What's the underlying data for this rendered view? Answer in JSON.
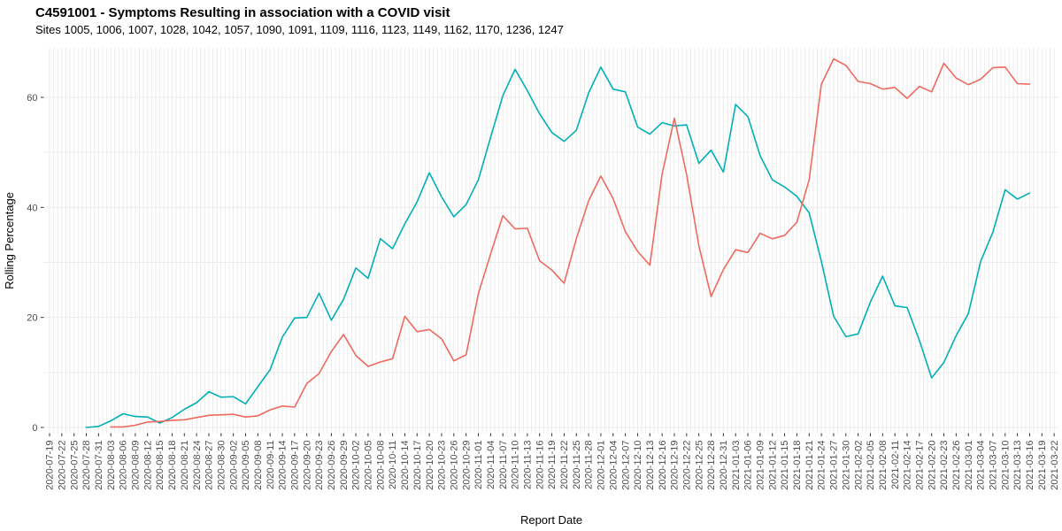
{
  "header": {
    "title": "C4591001 - Symptoms Resulting in association with a COVID visit",
    "subtitle": "Sites 1005, 1006, 1007, 1028, 1042, 1057, 1090, 1091, 1109, 1116, 1123, 1149, 1162, 1170, 1236, 1247"
  },
  "chart_data": {
    "type": "line",
    "title": "C4591001 - Symptoms Resulting in association with a COVID visit",
    "subtitle": "Sites 1005, 1006, 1007, 1028, 1042, 1057, 1090, 1091, 1109, 1116, 1123, 1149, 1162, 1170, 1236, 1247",
    "xlabel": "Report Date",
    "ylabel": "Rolling Percentage",
    "ylim": [
      0,
      68.8
    ],
    "yticks": [
      0,
      20,
      40,
      60
    ],
    "y_gridlines": [
      0,
      10,
      20,
      30,
      40,
      50,
      60
    ],
    "x_gridlines": "one light vertical line per day across full range",
    "grid": true,
    "legend": "none",
    "x_tick_interval_days": 3,
    "x": [
      "2020-07-19",
      "2020-07-22",
      "2020-07-25",
      "2020-07-28",
      "2020-07-31",
      "2020-08-03",
      "2020-08-06",
      "2020-08-09",
      "2020-08-12",
      "2020-08-15",
      "2020-08-18",
      "2020-08-21",
      "2020-08-24",
      "2020-08-27",
      "2020-08-30",
      "2020-09-02",
      "2020-09-05",
      "2020-09-08",
      "2020-09-11",
      "2020-09-14",
      "2020-09-17",
      "2020-09-20",
      "2020-09-23",
      "2020-09-26",
      "2020-09-29",
      "2020-10-02",
      "2020-10-05",
      "2020-10-08",
      "2020-10-11",
      "2020-10-14",
      "2020-10-17",
      "2020-10-20",
      "2020-10-23",
      "2020-10-26",
      "2020-10-29",
      "2020-11-01",
      "2020-11-04",
      "2020-11-07",
      "2020-11-10",
      "2020-11-13",
      "2020-11-16",
      "2020-11-19",
      "2020-11-22",
      "2020-11-25",
      "2020-11-28",
      "2020-12-01",
      "2020-12-04",
      "2020-12-07",
      "2020-12-10",
      "2020-12-13",
      "2020-12-16",
      "2020-12-19",
      "2020-12-22",
      "2020-12-25",
      "2020-12-28",
      "2020-12-31",
      "2021-01-03",
      "2021-01-06",
      "2021-01-09",
      "2021-01-12",
      "2021-01-15",
      "2021-01-18",
      "2021-01-21",
      "2021-01-24",
      "2021-01-27",
      "2021-01-30",
      "2021-02-02",
      "2021-02-05",
      "2021-02-08",
      "2021-02-11",
      "2021-02-14",
      "2021-02-17",
      "2021-02-20",
      "2021-02-23",
      "2021-02-26",
      "2021-03-01",
      "2021-03-04",
      "2021-03-07",
      "2021-03-10",
      "2021-03-13",
      "2021-03-16",
      "2021-03-19",
      "2021-03-22"
    ],
    "series": [
      {
        "name": "teal-line",
        "color": "#00b0b5",
        "values": [
          null,
          null,
          null,
          0,
          0.2,
          1.2,
          2.5,
          2,
          1.9,
          0.8,
          1.8,
          3.3,
          4.5,
          6.5,
          5.5,
          5.6,
          4.3,
          7.4,
          10.5,
          16.4,
          19.9,
          20,
          24.4,
          19.5,
          23.3,
          29,
          27.1,
          34.3,
          32.5,
          37,
          41,
          46.3,
          41.9,
          38.3,
          40.5,
          45,
          52.7,
          60.3,
          65.1,
          61.2,
          57,
          53.6,
          52,
          54,
          60.8,
          65.5,
          61.5,
          61,
          54.6,
          53.3,
          55.4,
          54.8,
          55,
          48,
          50.4,
          46.4,
          58.7,
          56.5,
          49.4,
          45,
          43.7,
          42,
          39,
          30.2,
          20.2,
          16.5,
          17,
          22.8,
          27.5,
          22.1,
          21.8,
          15.8,
          9,
          11.8,
          16.7,
          20.7,
          30.2,
          35.5,
          43.2,
          41.5,
          42.6,
          null,
          null
        ]
      },
      {
        "name": "red-line",
        "color": "#ee6a5f",
        "values": [
          null,
          null,
          null,
          null,
          null,
          0.1,
          0.1,
          0.4,
          1,
          1.1,
          1.3,
          1.4,
          1.8,
          2.2,
          2.3,
          2.4,
          1.9,
          2.1,
          3.2,
          3.9,
          3.7,
          8,
          9.8,
          13.8,
          16.9,
          13.1,
          11.1,
          11.9,
          12.5,
          20.2,
          17.4,
          17.8,
          16.1,
          12.1,
          13.2,
          24.3,
          31.5,
          38.5,
          36.1,
          36.2,
          30.3,
          28.6,
          26.2,
          34.3,
          41.2,
          45.7,
          41.6,
          35.6,
          32,
          29.5,
          46,
          56.2,
          46,
          33,
          23.8,
          28.7,
          32.3,
          31.8,
          35.3,
          34.3,
          34.9,
          37.3,
          45,
          62.4,
          67,
          65.8,
          62.9,
          62.5,
          61.5,
          61.8,
          59.8,
          62,
          61,
          66.2,
          63.5,
          62.3,
          63.3,
          65.4,
          65.5,
          62.5,
          62.4,
          null,
          null
        ]
      }
    ]
  },
  "colors": {
    "background": "#ffffff",
    "gridline": "#ececec",
    "tick_mark": "#333333",
    "tick_label": "#4d4d4d",
    "teal_series": "#00b0b5",
    "red_series": "#ee6a5f"
  }
}
